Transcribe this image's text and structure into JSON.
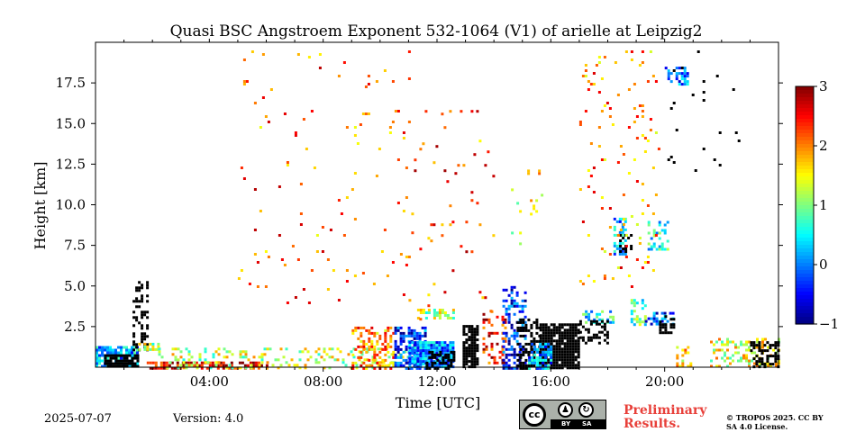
{
  "chart_data": {
    "type": "heatmap",
    "title": "Quasi BSC Angstroem Exponent 532-1064 (V1) of arielle at Leipzig2",
    "xlabel": "Time [UTC]",
    "ylabel": "Height [km]",
    "xlim_hours": [
      0,
      24
    ],
    "ylim_km": [
      0,
      20
    ],
    "x_ticks": [
      {
        "hour": 4,
        "label": "04:00"
      },
      {
        "hour": 8,
        "label": "08:00"
      },
      {
        "hour": 12,
        "label": "12:00"
      },
      {
        "hour": 16,
        "label": "16:00"
      },
      {
        "hour": 20,
        "label": "20:00"
      }
    ],
    "y_ticks": [
      {
        "value": 2.5,
        "label": "2.5"
      },
      {
        "value": 5.0,
        "label": "5.0"
      },
      {
        "value": 7.5,
        "label": "7.5"
      },
      {
        "value": 10.0,
        "label": "10.0"
      },
      {
        "value": 12.5,
        "label": "12.5"
      },
      {
        "value": 15.0,
        "label": "15.0"
      },
      {
        "value": 17.5,
        "label": "17.5"
      }
    ],
    "colorbar": {
      "min": -1,
      "max": 3,
      "ticks": [
        {
          "value": 3,
          "label": "3"
        },
        {
          "value": 2,
          "label": "2"
        },
        {
          "value": 1,
          "label": "1"
        },
        {
          "value": 0,
          "label": "0"
        },
        {
          "value": -1,
          "label": "−1"
        }
      ],
      "colormap": "jet"
    },
    "regions": [
      {
        "t0": 0.0,
        "t1": 1.5,
        "h0": 0.0,
        "h1": 1.3,
        "value": 0.2,
        "fill": 0.85
      },
      {
        "t0": 0.3,
        "t1": 1.5,
        "h0": 0.0,
        "h1": 0.8,
        "value": -1.5,
        "fill": 0.9
      },
      {
        "t0": 1.3,
        "t1": 1.8,
        "h0": 1.0,
        "h1": 5.3,
        "value": -1.5,
        "fill": 0.35
      },
      {
        "t0": 1.5,
        "t1": 2.2,
        "h0": 1.1,
        "h1": 1.5,
        "value": 1.2,
        "fill": 0.8
      },
      {
        "t0": 1.8,
        "t1": 6.0,
        "h0": 0.0,
        "h1": 0.35,
        "value": 2.6,
        "fill": 0.6
      },
      {
        "t0": 2.2,
        "t1": 11.0,
        "h0": 0.0,
        "h1": 1.2,
        "value": 1.3,
        "fill": 0.22
      },
      {
        "t0": 9.0,
        "t1": 10.5,
        "h0": 0.0,
        "h1": 2.5,
        "value": 2.0,
        "fill": 0.45
      },
      {
        "t0": 10.5,
        "t1": 11.6,
        "h0": 0.0,
        "h1": 2.5,
        "value": -0.3,
        "fill": 0.55
      },
      {
        "t0": 11.0,
        "t1": 12.6,
        "h0": 0.0,
        "h1": 1.6,
        "value": 0.0,
        "fill": 0.9
      },
      {
        "t0": 11.6,
        "t1": 12.6,
        "h0": 0.0,
        "h1": 1.0,
        "value": -1.5,
        "fill": 0.6
      },
      {
        "t0": 11.3,
        "t1": 12.6,
        "h0": 3.0,
        "h1": 3.6,
        "value": 1.2,
        "fill": 0.5
      },
      {
        "t0": 12.9,
        "t1": 13.4,
        "h0": 0.0,
        "h1": 2.6,
        "value": -1.5,
        "fill": 0.8
      },
      {
        "t0": 13.6,
        "t1": 14.4,
        "h0": 0.3,
        "h1": 3.5,
        "value": 2.5,
        "fill": 0.25
      },
      {
        "t0": 14.3,
        "t1": 15.1,
        "h0": 0.0,
        "h1": 5.0,
        "value": -0.4,
        "fill": 0.45
      },
      {
        "t0": 14.8,
        "t1": 15.6,
        "h0": 0.0,
        "h1": 3.0,
        "value": -1.5,
        "fill": 0.5
      },
      {
        "t0": 15.6,
        "t1": 17.0,
        "h0": 0.0,
        "h1": 2.7,
        "value": -1.5,
        "fill": 0.9
      },
      {
        "t0": 15.2,
        "t1": 16.0,
        "h0": 0.0,
        "h1": 1.5,
        "value": 0.0,
        "fill": 0.6
      },
      {
        "t0": 17.1,
        "t1": 18.2,
        "h0": 2.7,
        "h1": 3.5,
        "value": 0.5,
        "fill": 0.4
      },
      {
        "t0": 17.0,
        "t1": 18.0,
        "h0": 1.5,
        "h1": 2.9,
        "value": -1.5,
        "fill": 0.55
      },
      {
        "t0": 18.2,
        "t1": 18.6,
        "h0": 7.0,
        "h1": 9.2,
        "value": 0.2,
        "fill": 0.55
      },
      {
        "t0": 18.4,
        "t1": 18.8,
        "h0": 7.2,
        "h1": 8.2,
        "value": -1.5,
        "fill": 0.5
      },
      {
        "t0": 18.8,
        "t1": 19.3,
        "h0": 2.7,
        "h1": 4.2,
        "value": 0.8,
        "fill": 0.5
      },
      {
        "t0": 19.3,
        "t1": 20.3,
        "h0": 2.7,
        "h1": 3.4,
        "value": -0.2,
        "fill": 0.5
      },
      {
        "t0": 19.8,
        "t1": 20.3,
        "h0": 2.2,
        "h1": 3.2,
        "value": -1.5,
        "fill": 0.45
      },
      {
        "t0": 19.4,
        "t1": 20.1,
        "h0": 7.2,
        "h1": 9.0,
        "value": 0.6,
        "fill": 0.35
      },
      {
        "t0": 20.0,
        "t1": 20.8,
        "h0": 17.5,
        "h1": 18.5,
        "value": 0.0,
        "fill": 0.5
      },
      {
        "t0": 20.4,
        "t1": 20.9,
        "h0": 0.0,
        "h1": 1.3,
        "value": 1.8,
        "fill": 0.35
      },
      {
        "t0": 21.5,
        "t1": 24.0,
        "h0": 0.0,
        "h1": 1.8,
        "value": 1.4,
        "fill": 0.35
      },
      {
        "t0": 23.0,
        "t1": 24.0,
        "h0": 0.0,
        "h1": 1.6,
        "value": -1.5,
        "fill": 0.55
      },
      {
        "t0": 5.0,
        "t1": 11.0,
        "h0": 4.0,
        "h1": 19.5,
        "value": 2.1,
        "fill": 0.018
      },
      {
        "t0": 11.0,
        "t1": 14.0,
        "h0": 3.0,
        "h1": 16.0,
        "value": 2.2,
        "fill": 0.025
      },
      {
        "t0": 14.6,
        "t1": 15.7,
        "h0": 7.0,
        "h1": 12.5,
        "value": 1.5,
        "fill": 0.05
      },
      {
        "t0": 17.0,
        "t1": 19.8,
        "h0": 5.0,
        "h1": 19.5,
        "value": 2.0,
        "fill": 0.04
      },
      {
        "t0": 20.0,
        "t1": 23.0,
        "h0": 12.0,
        "h1": 19.5,
        "value": -1.5,
        "fill": 0.02
      }
    ]
  },
  "footer": {
    "date": "2025-07-07",
    "version": "Version: 4.0",
    "preliminary": "Preliminary Results.",
    "copyright": "© TROPOS 2025. CC BY SA 4.0 License.",
    "license_badge": {
      "cc": "cc",
      "by": "BY",
      "sa": "SA"
    }
  }
}
